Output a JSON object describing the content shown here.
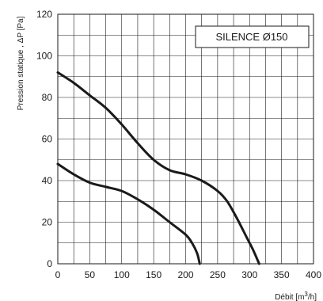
{
  "chart_data": {
    "type": "line",
    "legend_label": "SILENCE Ø150",
    "ylabel": "Pression statique , ΔP [Pa]",
    "xlabel": "Débit [m³/h]",
    "xlim": [
      0,
      400
    ],
    "ylim": [
      0,
      120
    ],
    "x_ticks": [
      0,
      50,
      100,
      150,
      200,
      250,
      300,
      350,
      400
    ],
    "y_ticks": [
      0,
      20,
      40,
      60,
      80,
      100,
      120
    ],
    "grid": true,
    "legend_placement": "top-right",
    "series": [
      {
        "values": [
          [
            0,
            92
          ],
          [
            25,
            87
          ],
          [
            50,
            81
          ],
          [
            75,
            75
          ],
          [
            100,
            67
          ],
          [
            125,
            58
          ],
          [
            150,
            50
          ],
          [
            175,
            45
          ],
          [
            200,
            43
          ],
          [
            225,
            40
          ],
          [
            250,
            35
          ],
          [
            265,
            30
          ],
          [
            280,
            22
          ],
          [
            295,
            13
          ],
          [
            305,
            7
          ],
          [
            315,
            0
          ]
        ]
      },
      {
        "values": [
          [
            0,
            48
          ],
          [
            25,
            43
          ],
          [
            50,
            39
          ],
          [
            75,
            37
          ],
          [
            100,
            35
          ],
          [
            125,
            31
          ],
          [
            150,
            26
          ],
          [
            175,
            20
          ],
          [
            200,
            14
          ],
          [
            210,
            10
          ],
          [
            218,
            5
          ],
          [
            222,
            0
          ]
        ]
      }
    ],
    "line_color": "#1a1a1a",
    "grid_color": "#1a1a1a"
  }
}
